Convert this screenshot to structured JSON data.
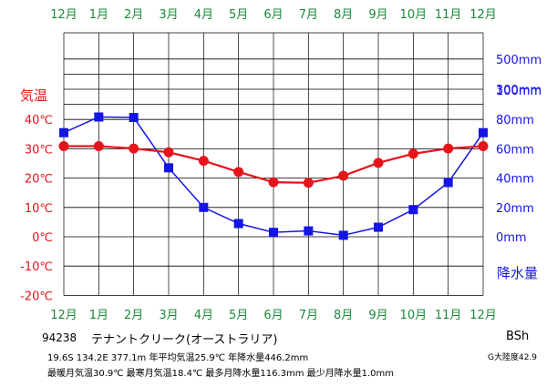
{
  "station": {
    "code": "94238",
    "name": "テナントクリーク(オーストラリア)",
    "climate_class": "BSh",
    "continentality": "G大陸度42.9"
  },
  "info_line1": "19.6S  134.2E  377.1m  年平均気温25.9℃  年降水量446.2mm",
  "info_line2": "最暖月気温30.9℃  最寒月気温18.4℃  最多月降水量116.3mm  最少月降水量1.0mm",
  "colors": {
    "temperature": "#e8141b",
    "precipitation": "#1414e6",
    "month_labels": "#1a8a3a",
    "grid": "#000000"
  },
  "chart_data": {
    "type": "line",
    "x_categories": [
      "12月",
      "1月",
      "2月",
      "3月",
      "4月",
      "5月",
      "6月",
      "7月",
      "8月",
      "9月",
      "10月",
      "11月",
      "12月"
    ],
    "temp_axis": {
      "label": "気温",
      "ticks": [
        "40℃",
        "30℃",
        "20℃",
        "10℃",
        "0℃",
        "-10℃",
        "-20℃"
      ],
      "range": [
        -20,
        40
      ]
    },
    "precip_axis": {
      "label": "降水量",
      "ticks": [
        "500mm",
        "300mm",
        "100mm",
        "80mm",
        "60mm",
        "40mm",
        "20mm",
        "0mm"
      ],
      "note": "0–100mm linear (20mm/grid), above 100mm 100mm/grid"
    },
    "series": [
      {
        "name": "気温",
        "unit": "℃",
        "values": [
          30.9,
          30.9,
          30.1,
          28.8,
          25.9,
          22.1,
          18.6,
          18.4,
          20.8,
          25.2,
          28.3,
          30.1,
          30.9
        ]
      },
      {
        "name": "降水量",
        "unit": "mm",
        "values": [
          71.0,
          116.3,
          113.0,
          47.0,
          20.0,
          9.0,
          3.0,
          4.0,
          1.0,
          6.5,
          18.5,
          37.0,
          71.0
        ]
      }
    ]
  }
}
